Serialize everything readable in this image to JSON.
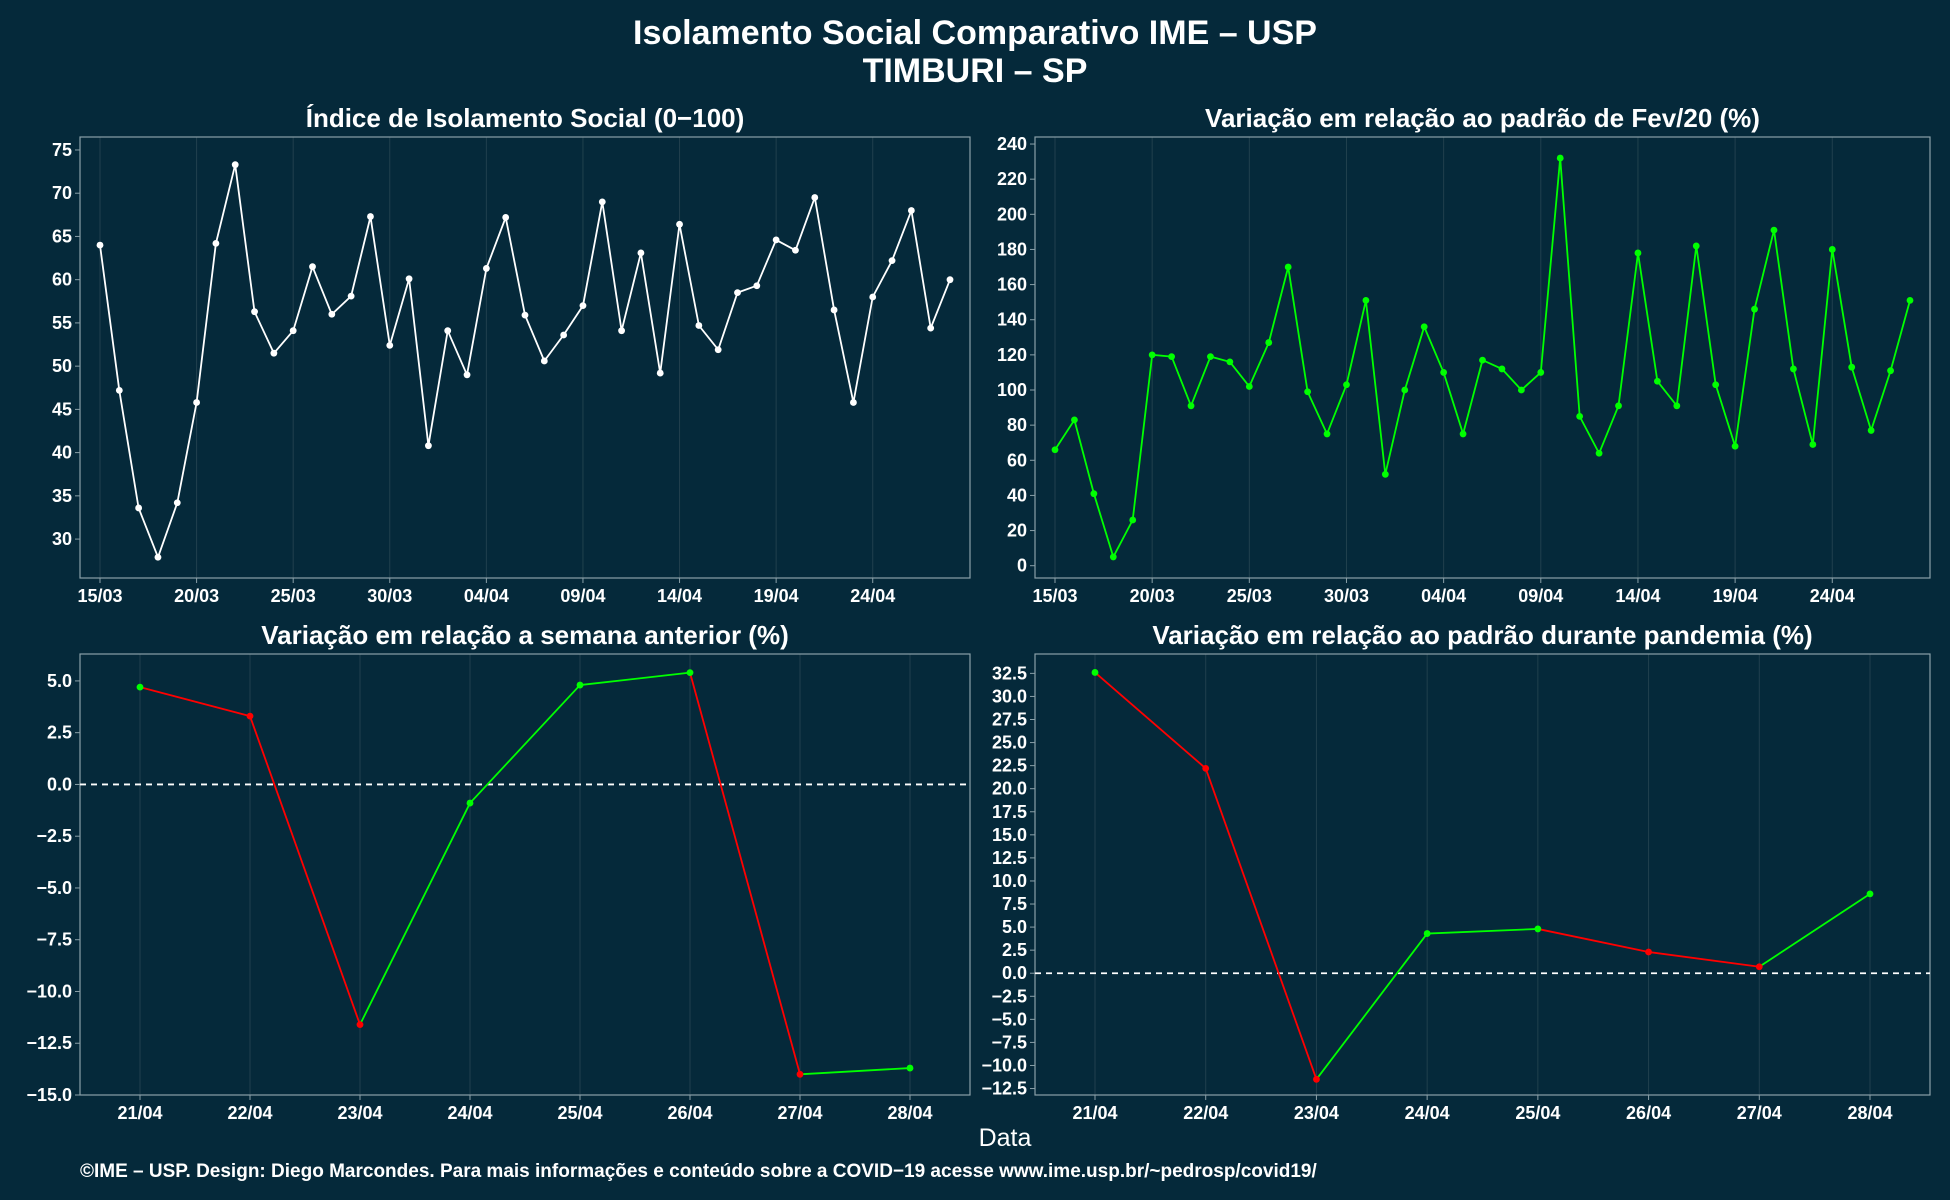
{
  "title_line1": "Isolamento Social Comparativo IME – USP",
  "title_line2": "TIMBURI – SP",
  "xlabel": "Data",
  "footer": "©IME – USP. Design: Diego Marcondes. Para mais informações e conteúdo sobre a COVID−19 acesse www.ime.usp.br/~pedrosp/covid19/",
  "colors": {
    "background": "#05293a",
    "white_line": "#ffffff",
    "green": "#00ff00",
    "red": "#ff0000",
    "grid": "#21404e",
    "axis": "#8aa0a8"
  },
  "chart_data": [
    {
      "type": "line",
      "title": "Índice de Isolamento Social (0−100)",
      "x": [
        "15/03",
        "16/03",
        "17/03",
        "18/03",
        "19/03",
        "20/03",
        "21/03",
        "22/03",
        "23/03",
        "24/03",
        "25/03",
        "26/03",
        "27/03",
        "28/03",
        "29/03",
        "30/03",
        "31/03",
        "01/04",
        "02/04",
        "03/04",
        "04/04",
        "05/04",
        "06/04",
        "07/04",
        "08/04",
        "09/04",
        "10/04",
        "11/04",
        "12/04",
        "13/04",
        "14/04",
        "15/04",
        "16/04",
        "17/04",
        "18/04",
        "19/04",
        "20/04",
        "21/04",
        "22/04",
        "23/04",
        "24/04",
        "25/04",
        "26/04",
        "27/04",
        "28/04"
      ],
      "x_ticks": [
        "15/03",
        "20/03",
        "25/03",
        "30/03",
        "04/04",
        "09/04",
        "14/04",
        "19/04",
        "24/04"
      ],
      "y": [
        64.0,
        47.2,
        33.6,
        27.9,
        34.2,
        45.8,
        64.2,
        73.3,
        56.3,
        51.5,
        54.1,
        61.5,
        56.0,
        58.1,
        67.3,
        52.4,
        60.1,
        40.8,
        54.1,
        49.0,
        61.3,
        67.2,
        55.9,
        50.6,
        53.6,
        57.0,
        69.0,
        54.1,
        63.1,
        49.2,
        66.4,
        54.7,
        51.9,
        58.5,
        59.3,
        64.6,
        63.4,
        69.5,
        56.5,
        45.8,
        58.0,
        62.2,
        68.0,
        54.4,
        60.0
      ],
      "y_ticks": [
        30,
        35,
        40,
        45,
        50,
        55,
        60,
        65,
        70,
        75
      ],
      "ylim": [
        25.5,
        76.5
      ],
      "line_color": "#ffffff"
    },
    {
      "type": "line",
      "title": "Variação em relação ao padrão de Fev/20 (%)",
      "x": [
        "15/03",
        "16/03",
        "17/03",
        "18/03",
        "19/03",
        "20/03",
        "21/03",
        "22/03",
        "23/03",
        "24/03",
        "25/03",
        "26/03",
        "27/03",
        "28/03",
        "29/03",
        "30/03",
        "31/03",
        "01/04",
        "02/04",
        "03/04",
        "04/04",
        "05/04",
        "06/04",
        "07/04",
        "08/04",
        "09/04",
        "10/04",
        "11/04",
        "12/04",
        "13/04",
        "14/04",
        "15/04",
        "16/04",
        "17/04",
        "18/04",
        "19/04",
        "20/04",
        "21/04",
        "22/04",
        "23/04",
        "24/04",
        "25/04",
        "26/04",
        "27/04",
        "28/04"
      ],
      "x_ticks": [
        "15/03",
        "20/03",
        "25/03",
        "30/03",
        "04/04",
        "09/04",
        "14/04",
        "19/04",
        "24/04"
      ],
      "y": [
        66,
        83,
        41,
        5,
        26,
        120,
        119,
        91,
        119,
        116,
        102,
        127,
        170,
        99,
        75,
        103,
        151,
        52,
        100,
        136,
        110,
        75,
        117,
        112,
        100,
        110,
        232,
        85,
        64,
        91,
        178,
        105,
        91,
        182,
        103,
        68,
        146,
        191,
        112,
        69,
        180,
        113,
        77,
        111,
        151
      ],
      "y_ticks": [
        0,
        20,
        40,
        60,
        80,
        100,
        120,
        140,
        160,
        180,
        200,
        220,
        240
      ],
      "ylim": [
        -7,
        244
      ],
      "line_color": "#00ff00"
    },
    {
      "type": "line",
      "title": "Variação em relação a semana anterior (%)",
      "categories": [
        "21/04",
        "22/04",
        "23/04",
        "24/04",
        "25/04",
        "26/04",
        "27/04",
        "28/04"
      ],
      "values": [
        4.7,
        3.3,
        -11.6,
        -0.9,
        4.8,
        5.4,
        -14.0,
        -13.7
      ],
      "y_ticks": [
        5.0,
        2.5,
        0.0,
        -2.5,
        -5.0,
        -7.5,
        -10.0,
        -12.5,
        -15.0
      ],
      "y_tick_labels": [
        "5.0",
        "2.5",
        "0.0",
        "−2.5",
        "−5.0",
        "−7.5",
        "−10.0",
        "−12.5",
        "−15.0"
      ],
      "ylim": [
        -15,
        6.3
      ],
      "reference_line": 0,
      "up_color": "#00ff00",
      "down_color": "#ff0000"
    },
    {
      "type": "line",
      "title": "Variação em relação ao padrão durante pandemia (%)",
      "categories": [
        "21/04",
        "22/04",
        "23/04",
        "24/04",
        "25/04",
        "26/04",
        "27/04",
        "28/04"
      ],
      "values": [
        32.6,
        22.2,
        -11.5,
        4.3,
        4.8,
        2.3,
        0.7,
        8.6
      ],
      "y_ticks": [
        32.5,
        30.0,
        27.5,
        25.0,
        22.5,
        20.0,
        17.5,
        15.0,
        12.5,
        10.0,
        7.5,
        5.0,
        2.5,
        0.0,
        -2.5,
        -5.0,
        -7.5,
        -10.0,
        -12.5
      ],
      "y_tick_labels": [
        "32.5",
        "30.0",
        "27.5",
        "25.0",
        "22.5",
        "20.0",
        "17.5",
        "15.0",
        "12.5",
        "10.0",
        "7.5",
        "5.0",
        "2.5",
        "0.0",
        "−2.5",
        "−5.0",
        "−7.5",
        "−10.0",
        "−12.5"
      ],
      "ylim": [
        -13.2,
        34.6
      ],
      "reference_line": 0,
      "up_color": "#00ff00",
      "down_color": "#ff0000"
    }
  ]
}
